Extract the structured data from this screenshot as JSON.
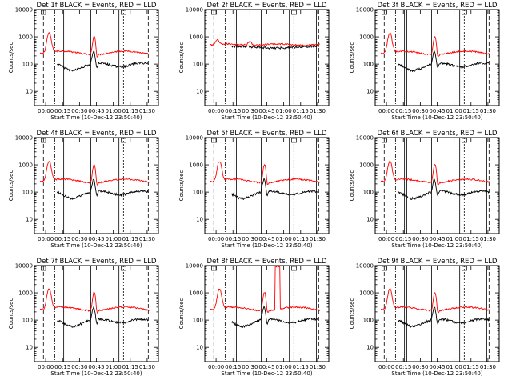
{
  "chart_data": [
    {
      "type": "line",
      "title": "Det 1f BLACK = Events, RED = LLD",
      "xlabel": "Start Time (10-Dec-12 23:50:40)",
      "ylabel": "Counts/sec",
      "ylim": [
        3,
        10000
      ],
      "y_scale": "log",
      "xlim": [
        -10,
        100
      ],
      "xticks": [
        "00:00",
        "00:15",
        "00:30",
        "00:45",
        "01:00",
        "01:15",
        "01:30"
      ],
      "yticks": [
        "10",
        "100",
        "1000",
        "10000"
      ],
      "series_colors": {
        "events": "#000000",
        "lld": "#ff0000"
      },
      "peak_events": null,
      "events_dropout": false,
      "lld_spike": false
    },
    {
      "type": "line",
      "title": "Det 2f BLACK = Events, RED = LLD",
      "xlabel": "Start Time (10-Dec-12 23:50:40)",
      "ylabel": "Counts/sec",
      "ylim": [
        3,
        10000
      ],
      "y_scale": "log",
      "xlim": [
        -10,
        100
      ],
      "xticks": [
        "00:00",
        "00:15",
        "00:30",
        "00:45",
        "01:00",
        "01:15",
        "01:30"
      ],
      "yticks": [
        "10",
        "100",
        "1000",
        "10000"
      ],
      "series_colors": {
        "events": "#000000",
        "lld": "#ff0000"
      },
      "peak_events": null,
      "events_dropout": true,
      "lld_spike": false
    },
    {
      "type": "line",
      "title": "Det 3f BLACK = Events, RED = LLD",
      "xlabel": "Start Time (10-Dec-12 23:50:40)",
      "ylabel": "Counts/sec",
      "ylim": [
        3,
        10000
      ],
      "y_scale": "log",
      "xlim": [
        -10,
        100
      ],
      "xticks": [
        "00:00",
        "00:15",
        "00:30",
        "00:45",
        "01:00",
        "01:15",
        "01:30"
      ],
      "yticks": [
        "10",
        "100",
        "1000",
        "10000"
      ],
      "series_colors": {
        "events": "#000000",
        "lld": "#ff0000"
      },
      "peak_events": null,
      "events_dropout": false,
      "lld_spike": false
    },
    {
      "type": "line",
      "title": "Det 4f BLACK = Events, RED = LLD",
      "xlabel": "Start Time (10-Dec-12 23:50:40)",
      "ylabel": "Counts/sec",
      "ylim": [
        3,
        10000
      ],
      "y_scale": "log",
      "xlim": [
        -10,
        100
      ],
      "xticks": [
        "00:00",
        "00:15",
        "00:30",
        "00:45",
        "01:00",
        "01:15",
        "01:30"
      ],
      "yticks": [
        "10",
        "100",
        "1000",
        "10000"
      ],
      "series_colors": {
        "events": "#000000",
        "lld": "#ff0000"
      },
      "peak_events": null,
      "events_dropout": false,
      "lld_spike": false
    },
    {
      "type": "line",
      "title": "Det 5f BLACK = Events, RED = LLD",
      "xlabel": "Start Time (10-Dec-12 23:50:40)",
      "ylabel": "Counts/sec",
      "ylim": [
        3,
        10000
      ],
      "y_scale": "log",
      "xlim": [
        -10,
        100
      ],
      "xticks": [
        "00:00",
        "00:15",
        "00:30",
        "00:45",
        "01:00",
        "01:15",
        "01:30"
      ],
      "yticks": [
        "10",
        "100",
        "1000",
        "10000"
      ],
      "series_colors": {
        "events": "#000000",
        "lld": "#ff0000"
      },
      "peak_events": null,
      "events_dropout": true,
      "lld_spike": false
    },
    {
      "type": "line",
      "title": "Det 6f BLACK = Events, RED = LLD",
      "xlabel": "Start Time (10-Dec-12 23:50:40)",
      "ylabel": "Counts/sec",
      "ylim": [
        3,
        10000
      ],
      "y_scale": "log",
      "xlim": [
        -10,
        100
      ],
      "xticks": [
        "00:00",
        "00:15",
        "00:30",
        "00:45",
        "01:00",
        "01:15",
        "01:30"
      ],
      "yticks": [
        "10",
        "100",
        "1000",
        "10000"
      ],
      "series_colors": {
        "events": "#000000",
        "lld": "#ff0000"
      },
      "peak_events": null,
      "events_dropout": false,
      "lld_spike": false
    },
    {
      "type": "line",
      "title": "Det 7f BLACK = Events, RED = LLD",
      "xlabel": "Start Time (10-Dec-12 23:50:40)",
      "ylabel": "Counts/sec",
      "ylim": [
        3,
        10000
      ],
      "y_scale": "log",
      "xlim": [
        -10,
        100
      ],
      "xticks": [
        "00:00",
        "00:15",
        "00:30",
        "00:45",
        "01:00",
        "01:15",
        "01:30"
      ],
      "yticks": [
        "10",
        "100",
        "1000",
        "10000"
      ],
      "series_colors": {
        "events": "#000000",
        "lld": "#ff0000"
      },
      "peak_events": null,
      "events_dropout": false,
      "lld_spike": false
    },
    {
      "type": "line",
      "title": "Det 8f BLACK = Events, RED = LLD",
      "xlabel": "Start Time (10-Dec-12 23:50:40)",
      "ylabel": "Counts/sec",
      "ylim": [
        3,
        10000
      ],
      "y_scale": "log",
      "xlim": [
        -10,
        100
      ],
      "xticks": [
        "00:00",
        "00:15",
        "00:30",
        "00:45",
        "01:00",
        "01:15",
        "01:30"
      ],
      "yticks": [
        "10",
        "100",
        "1000",
        "10000"
      ],
      "series_colors": {
        "events": "#000000",
        "lld": "#ff0000"
      },
      "peak_events": null,
      "events_dropout": true,
      "lld_spike": true
    },
    {
      "type": "line",
      "title": "Det 9f BLACK = Events, RED = LLD",
      "xlabel": "Start Time (10-Dec-12 23:50:40)",
      "ylabel": "Counts/sec",
      "ylim": [
        3,
        10000
      ],
      "y_scale": "log",
      "xlim": [
        -10,
        100
      ],
      "xticks": [
        "00:00",
        "00:15",
        "00:30",
        "00:45",
        "01:00",
        "01:15",
        "01:30"
      ],
      "yticks": [
        "10",
        "100",
        "1000",
        "10000"
      ],
      "series_colors": {
        "events": "#000000",
        "lld": "#ff0000"
      },
      "peak_events": null,
      "events_dropout": false,
      "lld_spike": false
    }
  ]
}
